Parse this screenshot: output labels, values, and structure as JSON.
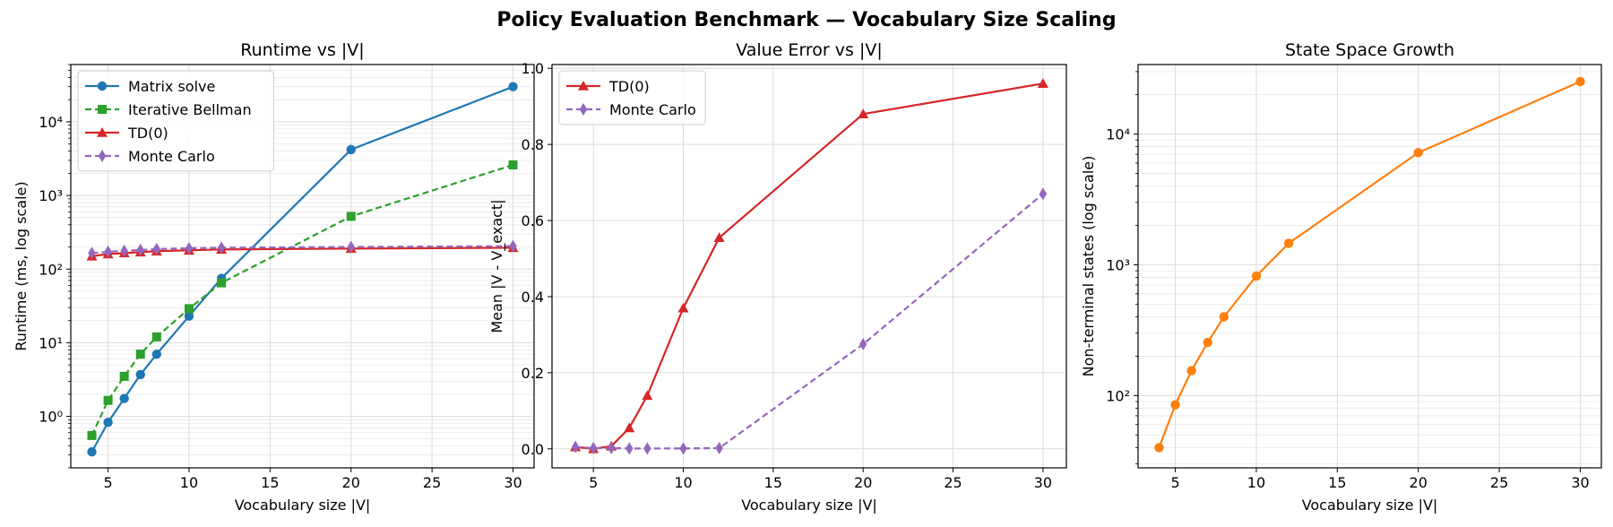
{
  "suptitle": "Policy Evaluation Benchmark — Vocabulary Size Scaling",
  "chart_data": [
    {
      "type": "line",
      "title": "Runtime vs |V|",
      "xlabel": "Vocabulary size |V|",
      "ylabel": "Runtime (ms, log scale)",
      "yscale": "log",
      "xlim": [
        2.7,
        31.3
      ],
      "ylim": [
        0.2,
        60000
      ],
      "xticks": [
        "5",
        "10",
        "15",
        "20",
        "25",
        "30"
      ],
      "yticks": [
        "10⁰",
        "10¹",
        "10²",
        "10³",
        "10⁴"
      ],
      "grid": true,
      "legend": "top-left",
      "x": [
        4,
        5,
        6,
        7,
        8,
        10,
        12,
        20,
        30
      ],
      "series": [
        {
          "name": "Matrix solve",
          "color": "#1f77b4",
          "marker": "circle",
          "dash": "solid",
          "values": [
            0.33,
            0.83,
            1.75,
            3.7,
            7.0,
            23,
            75,
            4200,
            30000
          ]
        },
        {
          "name": "Iterative Bellman",
          "color": "#2ca02c",
          "marker": "square",
          "dash": "dashed",
          "values": [
            0.55,
            1.65,
            3.5,
            7.0,
            12,
            29,
            65,
            520,
            2600
          ]
        },
        {
          "name": "TD(0)",
          "color": "#d62728",
          "marker": "triangle",
          "dash": "solid",
          "values": [
            150,
            160,
            165,
            170,
            175,
            180,
            185,
            190,
            195
          ]
        },
        {
          "name": "Monte Carlo",
          "color": "#9467bd",
          "marker": "diamond",
          "dash": "dashed",
          "values": [
            165,
            172,
            177,
            182,
            187,
            192,
            195,
            200,
            205
          ]
        }
      ]
    },
    {
      "type": "line",
      "title": "Value Error vs |V|",
      "xlabel": "Vocabulary size |V|",
      "ylabel": "Mean |V - V_exact|",
      "yscale": "linear",
      "xlim": [
        2.7,
        31.3
      ],
      "ylim": [
        -0.05,
        1.01
      ],
      "xticks": [
        "5",
        "10",
        "15",
        "20",
        "25",
        "30"
      ],
      "yticks": [
        "0.0",
        "0.2",
        "0.4",
        "0.6",
        "0.8",
        "1.0"
      ],
      "grid": true,
      "legend": "top-left",
      "x": [
        4,
        5,
        6,
        7,
        8,
        10,
        12,
        20,
        30
      ],
      "series": [
        {
          "name": "TD(0)",
          "color": "#d62728",
          "marker": "triangle",
          "dash": "solid",
          "values": [
            0.005,
            0.0,
            0.007,
            0.055,
            0.14,
            0.37,
            0.555,
            0.88,
            0.96
          ]
        },
        {
          "name": "Monte Carlo",
          "color": "#9467bd",
          "marker": "diamond",
          "dash": "dashed",
          "values": [
            0.005,
            0.002,
            0.002,
            0.001,
            0.001,
            0.001,
            0.002,
            0.275,
            0.67
          ]
        }
      ]
    },
    {
      "type": "line",
      "title": "State Space Growth",
      "xlabel": "Vocabulary size |V|",
      "ylabel": "Non-terminal states (log scale)",
      "yscale": "log",
      "xlim": [
        2.7,
        31.3
      ],
      "ylim": [
        28,
        34000
      ],
      "xticks": [
        "5",
        "10",
        "15",
        "20",
        "25",
        "30"
      ],
      "yticks": [
        "10²",
        "10³",
        "10⁴"
      ],
      "grid": true,
      "legend": "none",
      "x": [
        4,
        5,
        6,
        7,
        8,
        10,
        12,
        20,
        30
      ],
      "series": [
        {
          "color": "#ff7f0e",
          "marker": "circle",
          "dash": "solid",
          "values": [
            40,
            85,
            155,
            255,
            400,
            820,
            1460,
            7200,
            25200
          ]
        }
      ]
    }
  ]
}
